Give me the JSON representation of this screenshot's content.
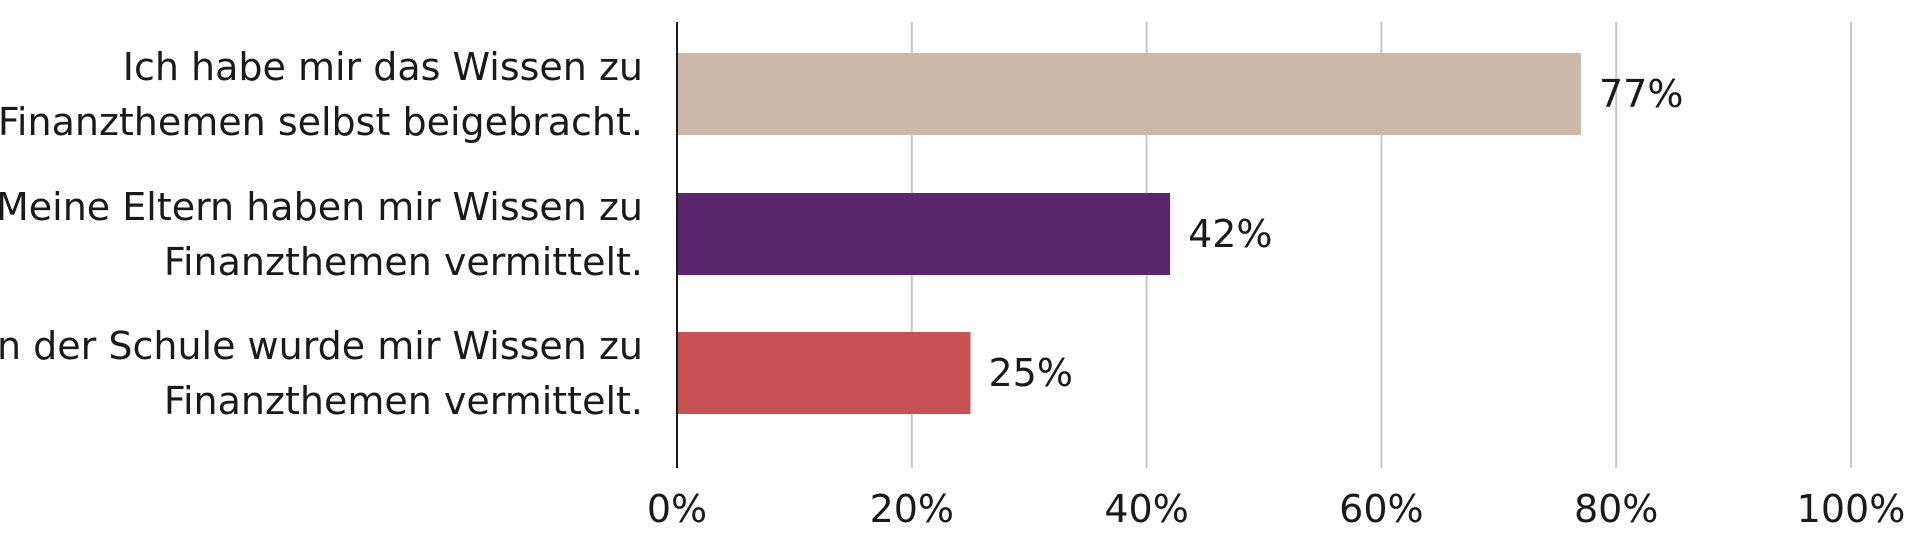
{
  "chart_data": {
    "type": "bar",
    "orientation": "horizontal",
    "title": "",
    "xlabel": "",
    "ylabel": "",
    "xlim": [
      0,
      100
    ],
    "grid": true,
    "tick_labels": [
      "0%",
      "20%",
      "40%",
      "60%",
      "80%",
      "100%"
    ],
    "tick_values": [
      0,
      20,
      40,
      60,
      80,
      100
    ],
    "bars": [
      {
        "label_lines": [
          "Ich habe mir das Wissen zu",
          "Finanzthemen selbst beigebracht."
        ],
        "value": 77,
        "value_label": "77%",
        "color": "#cbb8a8"
      },
      {
        "label_lines": [
          "Meine Eltern haben mir Wissen zu",
          "Finanzthemen vermittelt."
        ],
        "value": 42,
        "value_label": "42%",
        "color": "#5c266e"
      },
      {
        "label_lines": [
          "In der Schule wurde mir Wissen zu",
          "Finanzthemen vermittelt."
        ],
        "value": 25,
        "value_label": "25%",
        "color": "#c75254"
      }
    ]
  }
}
